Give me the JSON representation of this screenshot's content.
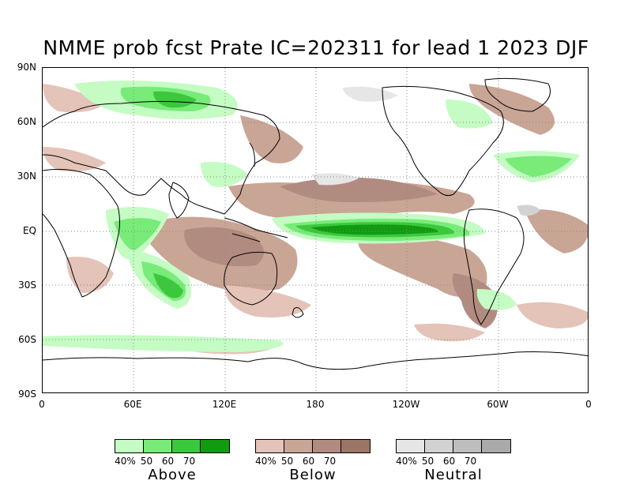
{
  "title": "NMME prob fcst Prate IC=202311 for lead 1 2023 DJF",
  "axes": {
    "lat_labels": [
      "90N",
      "60N",
      "30N",
      "EQ",
      "30S",
      "60S",
      "90S"
    ],
    "lon_labels": [
      "0",
      "60E",
      "120E",
      "180",
      "120W",
      "60W",
      "0"
    ]
  },
  "legends": [
    {
      "name": "Above",
      "levels": [
        "40%",
        "50",
        "60",
        "70"
      ],
      "colors": [
        "#c4fcc4",
        "#78eb78",
        "#3cc83c",
        "#119b11"
      ]
    },
    {
      "name": "Below",
      "levels": [
        "40%",
        "50",
        "60",
        "70"
      ],
      "colors": [
        "#e4c3b8",
        "#c9a596",
        "#b28b80",
        "#9b7566"
      ]
    },
    {
      "name": "Neutral",
      "levels": [
        "40%",
        "50",
        "60",
        "70"
      ],
      "colors": [
        "#e6e6e6",
        "#d2d2d2",
        "#bebebe",
        "#aaaaaa"
      ]
    }
  ],
  "colors": {
    "above": [
      "#c4fcc4",
      "#78eb78",
      "#3cc83c",
      "#119b11"
    ],
    "below": [
      "#e4c3b8",
      "#c9a596",
      "#b28b80",
      "#9b7566"
    ],
    "neutral": [
      "#e6e6e6",
      "#d2d2d2",
      "#bebebe",
      "#aaaaaa"
    ]
  }
}
